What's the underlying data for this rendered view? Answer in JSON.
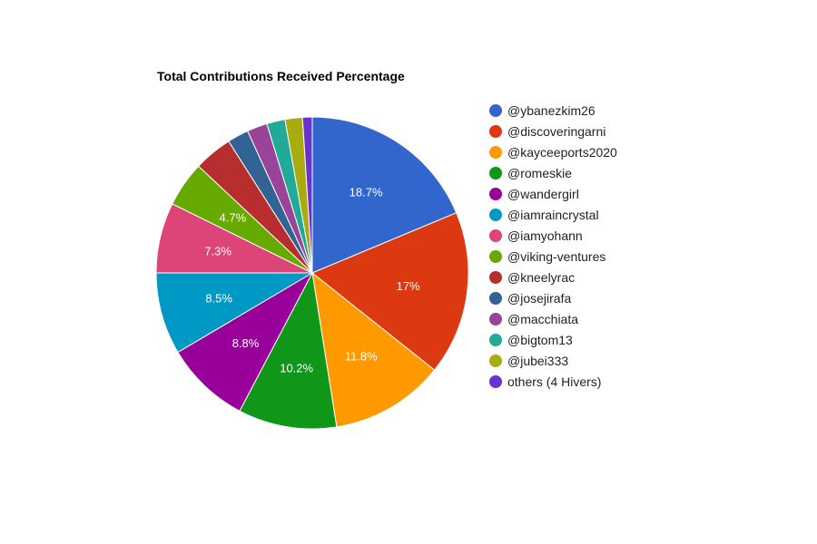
{
  "chart_data": {
    "type": "pie",
    "title": "Total Contributions Received Percentage",
    "legend_position": "right",
    "slices": [
      {
        "name": "@ybanezkim26",
        "value": 18.7,
        "label": "18.7%",
        "color": "#3366cc"
      },
      {
        "name": "@discoveringarni",
        "value": 17.0,
        "label": "17%",
        "color": "#dc3912"
      },
      {
        "name": "@kayceeports2020",
        "value": 11.8,
        "label": "11.8%",
        "color": "#ff9900"
      },
      {
        "name": "@romeskie",
        "value": 10.2,
        "label": "10.2%",
        "color": "#109618"
      },
      {
        "name": "@wandergirl",
        "value": 8.8,
        "label": "8.8%",
        "color": "#990099"
      },
      {
        "name": "@iamraincrystal",
        "value": 8.5,
        "label": "8.5%",
        "color": "#0099c6"
      },
      {
        "name": "@iamyohann",
        "value": 7.3,
        "label": "7.3%",
        "color": "#dd4477"
      },
      {
        "name": "@viking-ventures",
        "value": 4.7,
        "label": "4.7%",
        "color": "#66aa00"
      },
      {
        "name": "@kneelyrac",
        "value": 4.0,
        "label": "",
        "color": "#b82e2e"
      },
      {
        "name": "@josejirafa",
        "value": 2.2,
        "label": "",
        "color": "#316395"
      },
      {
        "name": "@macchiata",
        "value": 2.1,
        "label": "",
        "color": "#994499"
      },
      {
        "name": "@bigtom13",
        "value": 1.9,
        "label": "",
        "color": "#22aa99"
      },
      {
        "name": "@jubei333",
        "value": 1.8,
        "label": "",
        "color": "#aaaa11"
      },
      {
        "name": "others (4 Hivers)",
        "value": 1.0,
        "label": "",
        "color": "#6633cc"
      }
    ]
  }
}
